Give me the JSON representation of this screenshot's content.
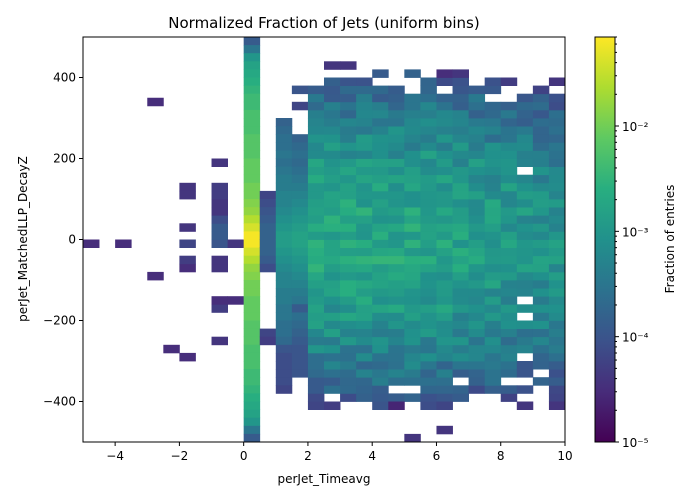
{
  "chart_data": {
    "type": "heatmap",
    "title": "Normalized Fraction of Jets (uniform bins)",
    "xlabel": "perJet_Timeavg",
    "ylabel": "perJet_MatchedLLP_DecayZ",
    "colorbar_label": "Fraction of entries",
    "colormap": "viridis",
    "xlim": [
      -5,
      10
    ],
    "ylim": [
      -500,
      500
    ],
    "x_ticks": [
      -4,
      -2,
      0,
      2,
      4,
      6,
      8,
      10
    ],
    "x_tick_labels": [
      "−4",
      "−2",
      "0",
      "2",
      "4",
      "6",
      "8",
      "10"
    ],
    "y_ticks": [
      -400,
      -200,
      0,
      200,
      400
    ],
    "y_tick_labels": [
      "−400",
      "−200",
      "0",
      "200",
      "400"
    ],
    "color_scale": "log",
    "color_range": [
      1e-05,
      0.07
    ],
    "colorbar_ticks": [
      1e-05,
      0.0001,
      0.001,
      0.01
    ],
    "colorbar_tick_labels": [
      "10⁻⁵",
      "10⁻⁴",
      "10⁻³",
      "10⁻²"
    ],
    "bin_width_x": 0.5,
    "bin_width_y": 20,
    "bins": [
      [
        -4.75,
        -10,
        -4.5
      ],
      [
        -3.75,
        -10,
        -4.5
      ],
      [
        -2.75,
        -90,
        -4.5
      ],
      [
        -2.75,
        340,
        -4.5
      ],
      [
        -2.25,
        -270,
        -4.5
      ],
      [
        -1.75,
        -290,
        -4.5
      ],
      [
        -1.75,
        -70,
        -4.5
      ],
      [
        -1.75,
        -50,
        -4.3
      ],
      [
        -1.75,
        -10,
        -4.2
      ],
      [
        -1.75,
        30,
        -4.4
      ],
      [
        -1.75,
        130,
        -4.4
      ],
      [
        -1.75,
        110,
        -4.4
      ],
      [
        -0.75,
        -250,
        -4.4
      ],
      [
        -0.75,
        -170,
        -4.3
      ],
      [
        -0.75,
        -150,
        -4.5
      ],
      [
        -0.75,
        -70,
        -4.4
      ],
      [
        -0.75,
        -50,
        -4.4
      ],
      [
        -0.75,
        -10,
        -4.0
      ],
      [
        -0.75,
        10,
        -3.9
      ],
      [
        -0.75,
        30,
        -3.9
      ],
      [
        -0.75,
        50,
        -4.1
      ],
      [
        -0.75,
        70,
        -4.4
      ],
      [
        -0.75,
        90,
        -4.4
      ],
      [
        -0.75,
        110,
        -4.3
      ],
      [
        -0.75,
        130,
        -4.3
      ],
      [
        -0.75,
        190,
        -4.4
      ],
      [
        -0.25,
        -10,
        -4.4
      ],
      [
        -0.25,
        -150,
        -4.5
      ],
      [
        0.25,
        490,
        -3.9
      ],
      [
        0.25,
        470,
        -3.5
      ],
      [
        0.25,
        450,
        -3.0
      ],
      [
        0.25,
        430,
        -2.8
      ],
      [
        0.25,
        410,
        -2.7
      ],
      [
        0.25,
        390,
        -2.6
      ],
      [
        0.25,
        370,
        -2.5
      ],
      [
        0.25,
        350,
        -2.4
      ],
      [
        0.25,
        330,
        -2.4
      ],
      [
        0.25,
        310,
        -2.3
      ],
      [
        0.25,
        290,
        -2.3
      ],
      [
        0.25,
        270,
        -2.3
      ],
      [
        0.25,
        250,
        -2.2
      ],
      [
        0.25,
        230,
        -2.2
      ],
      [
        0.25,
        210,
        -2.2
      ],
      [
        0.25,
        190,
        -2.1
      ],
      [
        0.25,
        170,
        -2.1
      ],
      [
        0.25,
        150,
        -2.1
      ],
      [
        0.25,
        130,
        -2.0
      ],
      [
        0.25,
        110,
        -2.0
      ],
      [
        0.25,
        90,
        -1.9
      ],
      [
        0.25,
        70,
        -1.8
      ],
      [
        0.25,
        50,
        -1.6
      ],
      [
        0.25,
        30,
        -1.4
      ],
      [
        0.25,
        10,
        -1.2
      ],
      [
        0.25,
        -10,
        -1.2
      ],
      [
        0.25,
        -30,
        -1.4
      ],
      [
        0.25,
        -50,
        -1.6
      ],
      [
        0.25,
        -70,
        -1.8
      ],
      [
        0.25,
        -90,
        -1.9
      ],
      [
        0.25,
        -110,
        -2.0
      ],
      [
        0.25,
        -130,
        -2.0
      ],
      [
        0.25,
        -150,
        -2.1
      ],
      [
        0.25,
        -170,
        -2.1
      ],
      [
        0.25,
        -190,
        -2.1
      ],
      [
        0.25,
        -210,
        -2.2
      ],
      [
        0.25,
        -230,
        -2.2
      ],
      [
        0.25,
        -250,
        -2.2
      ],
      [
        0.25,
        -270,
        -2.3
      ],
      [
        0.25,
        -290,
        -2.3
      ],
      [
        0.25,
        -310,
        -2.3
      ],
      [
        0.25,
        -330,
        -2.4
      ],
      [
        0.25,
        -350,
        -2.4
      ],
      [
        0.25,
        -370,
        -2.5
      ],
      [
        0.25,
        -390,
        -2.6
      ],
      [
        0.25,
        -410,
        -2.7
      ],
      [
        0.25,
        -430,
        -2.8
      ],
      [
        0.25,
        -450,
        -3.0
      ],
      [
        0.25,
        -470,
        -3.5
      ],
      [
        0.25,
        -490,
        -3.9
      ],
      [
        0.75,
        110,
        -4.2
      ],
      [
        0.75,
        90,
        -4.1
      ],
      [
        0.75,
        70,
        -4.0
      ],
      [
        0.75,
        50,
        -3.9
      ],
      [
        0.75,
        30,
        -3.8
      ],
      [
        0.75,
        10,
        -3.8
      ],
      [
        0.75,
        -10,
        -3.8
      ],
      [
        0.75,
        -30,
        -3.8
      ],
      [
        0.75,
        -50,
        -3.9
      ],
      [
        0.75,
        -70,
        -4.1
      ],
      [
        0.75,
        -230,
        -4.2
      ],
      [
        0.75,
        -250,
        -4.3
      ],
      [
        1.25,
        290,
        -3.8
      ],
      [
        1.25,
        270,
        -3.7
      ],
      [
        1.25,
        250,
        -3.6
      ],
      [
        1.25,
        230,
        -3.6
      ],
      [
        1.25,
        210,
        -3.5
      ],
      [
        1.25,
        190,
        -3.6
      ],
      [
        1.25,
        170,
        -3.5
      ],
      [
        1.25,
        150,
        -3.4
      ],
      [
        1.25,
        130,
        -3.4
      ],
      [
        1.25,
        110,
        -3.3
      ],
      [
        1.25,
        90,
        -3.3
      ],
      [
        1.25,
        70,
        -3.2
      ],
      [
        1.25,
        50,
        -3.1
      ],
      [
        1.25,
        30,
        -3.0
      ],
      [
        1.25,
        10,
        -2.9
      ],
      [
        1.25,
        -10,
        -2.9
      ],
      [
        1.25,
        -30,
        -3.0
      ],
      [
        1.25,
        -50,
        -3.1
      ],
      [
        1.25,
        -70,
        -3.2
      ],
      [
        1.25,
        -90,
        -3.3
      ],
      [
        1.25,
        -110,
        -3.3
      ],
      [
        1.25,
        -130,
        -3.4
      ],
      [
        1.25,
        -150,
        -3.4
      ],
      [
        1.25,
        -170,
        -3.5
      ],
      [
        1.25,
        -190,
        -3.5
      ],
      [
        1.25,
        -210,
        -3.6
      ],
      [
        1.25,
        -230,
        -3.6
      ],
      [
        1.25,
        -250,
        -3.7
      ],
      [
        1.25,
        -270,
        -4.0
      ],
      [
        1.25,
        -290,
        -4.1
      ],
      [
        1.25,
        -310,
        -4.1
      ],
      [
        1.25,
        -330,
        -4.1
      ],
      [
        1.25,
        -350,
        -4.1
      ],
      [
        1.25,
        -370,
        -4.2
      ],
      [
        1.75,
        370,
        -4.0
      ],
      [
        1.75,
        330,
        -4.2
      ],
      [
        1.75,
        250,
        -3.8
      ],
      [
        1.75,
        230,
        -3.7
      ],
      [
        1.75,
        210,
        -3.6
      ],
      [
        1.75,
        190,
        -3.7
      ],
      [
        1.75,
        170,
        -3.6
      ],
      [
        1.75,
        150,
        -3.5
      ],
      [
        1.75,
        130,
        -3.4
      ],
      [
        1.75,
        110,
        -3.3
      ],
      [
        1.75,
        90,
        -3.2
      ],
      [
        1.75,
        70,
        -3.1
      ],
      [
        1.75,
        50,
        -3.0
      ],
      [
        1.75,
        30,
        -2.9
      ],
      [
        1.75,
        10,
        -2.8
      ],
      [
        1.75,
        -10,
        -2.8
      ],
      [
        1.75,
        -30,
        -2.9
      ],
      [
        1.75,
        -50,
        -3.0
      ],
      [
        1.75,
        -70,
        -3.1
      ],
      [
        1.75,
        -90,
        -3.2
      ],
      [
        1.75,
        -110,
        -3.3
      ],
      [
        1.75,
        -130,
        -3.4
      ],
      [
        1.75,
        -150,
        -3.5
      ],
      [
        1.75,
        -170,
        -3.9
      ],
      [
        1.75,
        -190,
        -3.6
      ],
      [
        1.75,
        -210,
        -3.7
      ],
      [
        1.75,
        -230,
        -3.8
      ],
      [
        1.75,
        -250,
        -3.9
      ],
      [
        1.75,
        -270,
        -4.0
      ],
      [
        1.75,
        -290,
        -4.0
      ],
      [
        1.75,
        -310,
        -4.0
      ],
      [
        1.75,
        -330,
        -4.0
      ]
    ]
  }
}
